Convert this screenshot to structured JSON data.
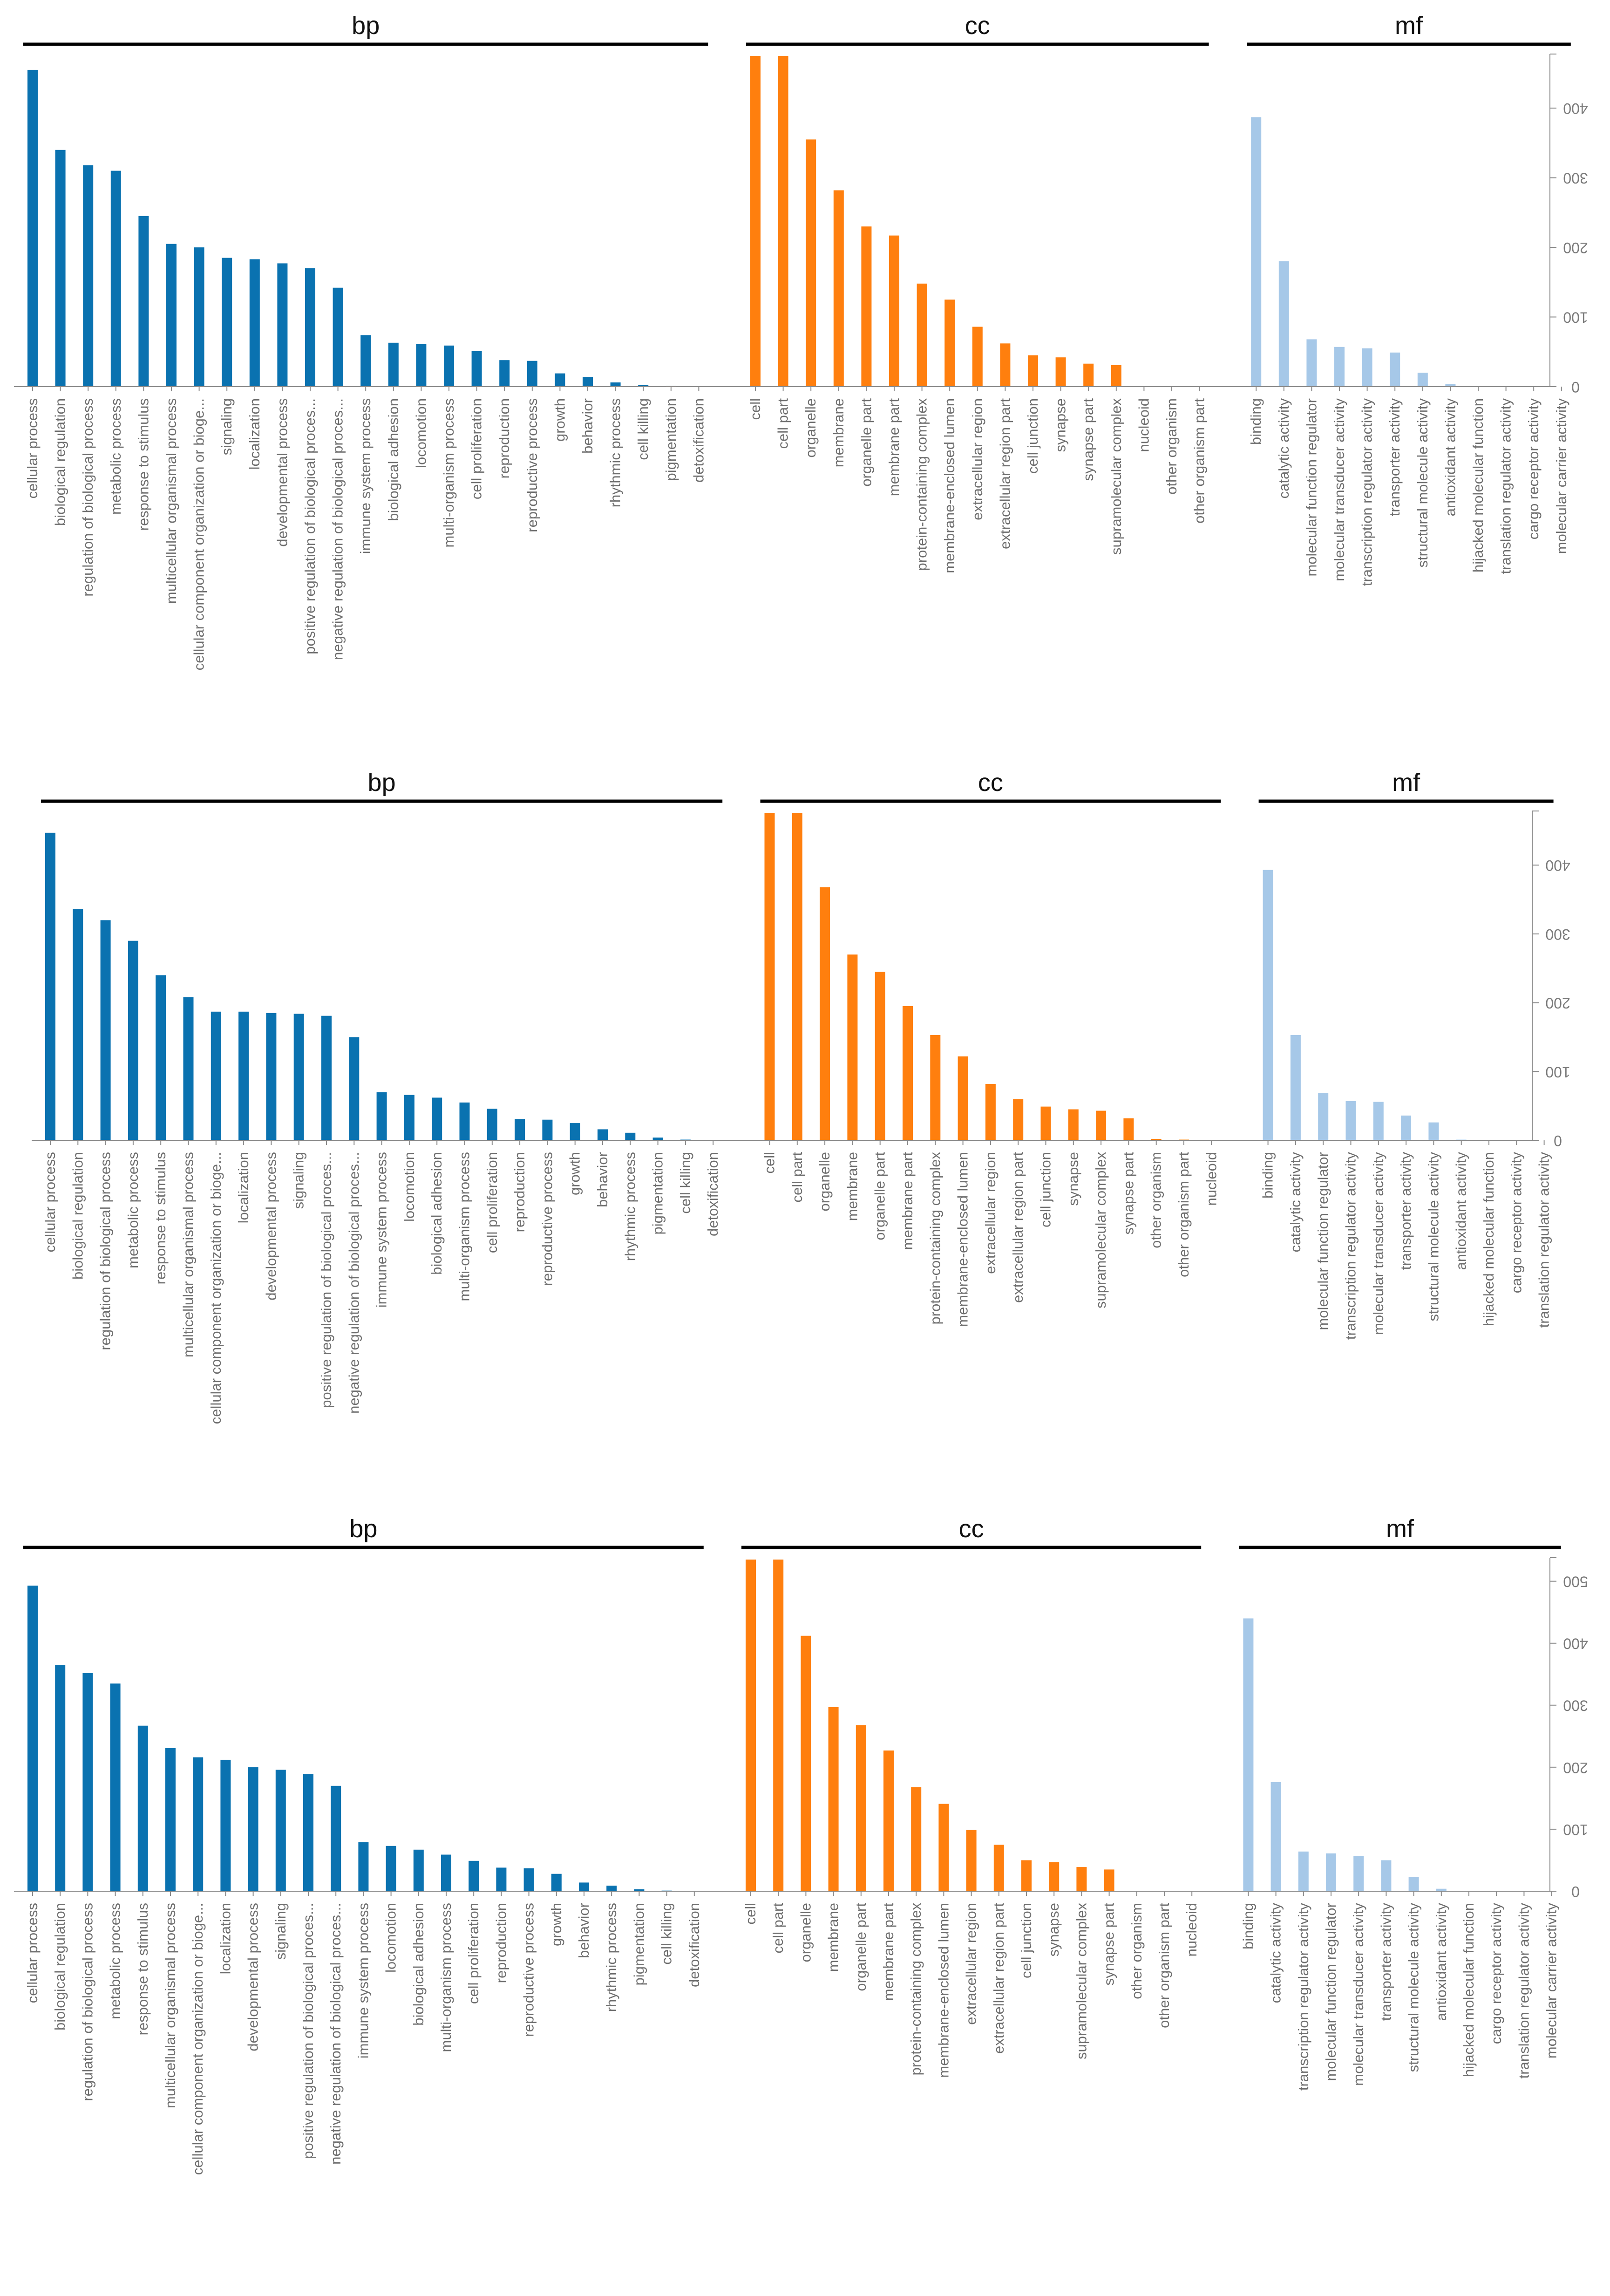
{
  "colors": {
    "bp": "#0a72b0",
    "cc": "#ff7f0e",
    "mf": "#a6c8e8",
    "axis": "#8a8a8a",
    "group_line": "#000000"
  },
  "chart_data": [
    {
      "type": "bar",
      "title": "",
      "groups": [
        {
          "name": "bp",
          "color": "#0a72b0",
          "categories": [
            "cellular process",
            "biological regulation",
            "regulation of biological process",
            "metabolic process",
            "response to stimulus",
            "multicellular organismal process",
            "cellular component organization or bioge...",
            "signaling",
            "localization",
            "developmental process",
            "positive regulation of biological proces...",
            "negative regulation of biological proces...",
            "immune system process",
            "biological adhesion",
            "locomotion",
            "multi-organism process",
            "cell proliferation",
            "reproduction",
            "reproductive process",
            "growth",
            "behavior",
            "rhythmic process",
            "cell killing",
            "pigmentation",
            "detoxification"
          ],
          "values": [
            455,
            340,
            318,
            310,
            245,
            205,
            200,
            185,
            183,
            177,
            170,
            142,
            74,
            63,
            61,
            59,
            51,
            38,
            37,
            19,
            14,
            6,
            2,
            1,
            0
          ]
        },
        {
          "name": "cc",
          "color": "#ff7f0e",
          "categories": [
            "cell",
            "cell part",
            "organelle",
            "membrane",
            "organelle part",
            "membrane part",
            "protein-containing complex",
            "membrane-enclosed lumen",
            "extracellular region",
            "extracellular region part",
            "cell junction",
            "synapse",
            "synapse part",
            "supramolecular complex",
            "nucleoid",
            "other organism",
            "other organism part"
          ],
          "values": [
            475,
            475,
            355,
            282,
            230,
            217,
            148,
            125,
            86,
            62,
            45,
            42,
            33,
            31,
            0,
            0,
            0
          ]
        },
        {
          "name": "mf",
          "color": "#a6c8e8",
          "categories": [
            "binding",
            "catalytic activity",
            "molecular function regulator",
            "molecular transducer activity",
            "transcription regulator activity",
            "transporter activity",
            "structural molecule activity",
            "antioxidant activity",
            "hijacked molecular function",
            "translation regulator activity",
            "cargo receptor activity",
            "molecular carrier activity"
          ],
          "values": [
            387,
            180,
            68,
            57,
            55,
            49,
            20,
            4,
            0,
            0,
            0,
            0
          ]
        }
      ],
      "ylabel": "",
      "ylim": [
        0,
        475
      ],
      "yticks": [
        0,
        100,
        200,
        300,
        400
      ],
      "ytick_labels": [
        "0",
        "100",
        "200",
        "300",
        "400"
      ],
      "grid": false,
      "legend": "none",
      "ytick_orientation": "rotated 180"
    },
    {
      "type": "bar",
      "title": "",
      "groups": [
        {
          "name": "bp",
          "color": "#0a72b0",
          "categories": [
            "cellular process",
            "biological regulation",
            "regulation of biological process",
            "metabolic process",
            "response to stimulus",
            "multicellular organismal process",
            "cellular component organization or bioge...",
            "localization",
            "developmental process",
            "signaling",
            "positive regulation of biological proces...",
            "negative regulation of biological proces...",
            "immune system process",
            "locomotion",
            "biological adhesion",
            "multi-organism process",
            "cell proliferation",
            "reproduction",
            "reproductive process",
            "growth",
            "behavior",
            "rhythmic process",
            "pigmentation",
            "cell killing",
            "detoxification"
          ],
          "values": [
            447,
            336,
            320,
            290,
            240,
            208,
            187,
            187,
            185,
            184,
            181,
            150,
            70,
            66,
            62,
            55,
            46,
            31,
            30,
            25,
            16,
            11,
            4,
            1,
            0
          ]
        },
        {
          "name": "cc",
          "color": "#ff7f0e",
          "categories": [
            "cell",
            "cell part",
            "organelle",
            "membrane",
            "organelle part",
            "membrane part",
            "protein-containing complex",
            "membrane-enclosed lumen",
            "extracellular region",
            "extracellular region part",
            "cell junction",
            "synapse",
            "supramolecular complex",
            "synapse part",
            "other organism",
            "other organism part",
            "nucleoid"
          ],
          "values": [
            476,
            476,
            368,
            270,
            245,
            195,
            153,
            122,
            82,
            60,
            49,
            45,
            43,
            32,
            2,
            1,
            0
          ]
        },
        {
          "name": "mf",
          "color": "#a6c8e8",
          "categories": [
            "binding",
            "catalytic activity",
            "molecular function regulator",
            "transcription regulator activity",
            "molecular transducer activity",
            "transporter activity",
            "structural molecule activity",
            "antioxidant activity",
            "hijacked molecular function",
            "cargo receptor activity",
            "translation regulator activity"
          ],
          "values": [
            393,
            153,
            69,
            57,
            56,
            36,
            26,
            1,
            0,
            0,
            0
          ]
        }
      ],
      "ylabel": "",
      "ylim": [
        0,
        476
      ],
      "yticks": [
        0,
        100,
        200,
        300,
        400
      ],
      "ytick_labels": [
        "0",
        "100",
        "200",
        "300",
        "400"
      ],
      "grid": false,
      "legend": "none",
      "ytick_orientation": "rotated 180"
    },
    {
      "type": "bar",
      "title": "",
      "groups": [
        {
          "name": "bp",
          "color": "#0a72b0",
          "categories": [
            "cellular process",
            "biological regulation",
            "regulation of biological process",
            "metabolic process",
            "response to stimulus",
            "multicellular organismal process",
            "cellular component organization or bioge...",
            "localization",
            "developmental process",
            "signaling",
            "positive regulation of biological proces...",
            "negative regulation of biological proces...",
            "immune system process",
            "locomotion",
            "biological adhesion",
            "multi-organism process",
            "cell proliferation",
            "reproduction",
            "reproductive process",
            "growth",
            "behavior",
            "rhythmic process",
            "pigmentation",
            "cell killing",
            "detoxification"
          ],
          "values": [
            493,
            365,
            352,
            335,
            267,
            231,
            216,
            212,
            200,
            196,
            189,
            170,
            79,
            73,
            67,
            59,
            49,
            38,
            37,
            28,
            14,
            9,
            3,
            1,
            0
          ]
        },
        {
          "name": "cc",
          "color": "#ff7f0e",
          "categories": [
            "cell",
            "cell part",
            "organelle",
            "membrane",
            "organelle part",
            "membrane part",
            "protein-containing complex",
            "membrane-enclosed lumen",
            "extracellular region",
            "extracellular region part",
            "cell junction",
            "synapse",
            "supramolecular complex",
            "synapse part",
            "other organism",
            "other organism part",
            "nucleoid"
          ],
          "values": [
            535,
            535,
            412,
            297,
            268,
            227,
            168,
            141,
            99,
            75,
            50,
            47,
            39,
            35,
            0,
            0,
            0
          ]
        },
        {
          "name": "mf",
          "color": "#a6c8e8",
          "categories": [
            "binding",
            "catalytic activity",
            "transcription regulator activity",
            "molecular function regulator",
            "molecular transducer activity",
            "transporter activity",
            "structural molecule activity",
            "antioxidant activity",
            "hijacked molecular function",
            "cargo receptor activity",
            "translation regulator activity",
            "molecular carrier activity"
          ],
          "values": [
            440,
            176,
            64,
            61,
            57,
            50,
            23,
            4,
            0,
            0,
            0,
            0
          ]
        }
      ],
      "ylabel": "",
      "ylim": [
        0,
        535
      ],
      "yticks": [
        0,
        100,
        200,
        300,
        400,
        500
      ],
      "ytick_labels": [
        "0",
        "100",
        "200",
        "300",
        "400",
        "500"
      ],
      "grid": false,
      "legend": "none",
      "ytick_orientation": "rotated 180"
    }
  ]
}
